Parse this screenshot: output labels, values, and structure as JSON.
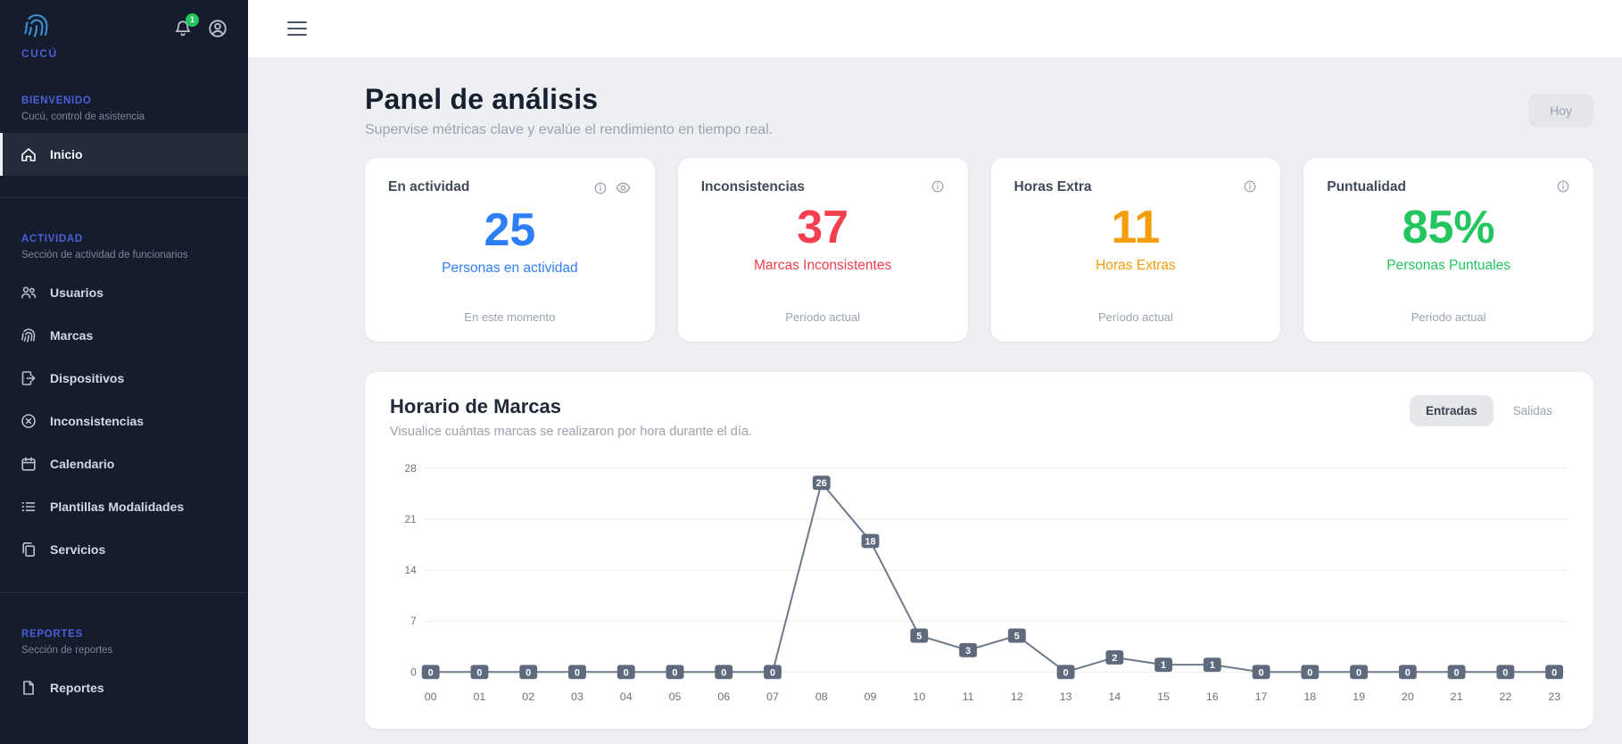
{
  "sidebar": {
    "logo_text": "CUCÚ",
    "logo_icon": "fingerprint-logo-icon",
    "notifications": {
      "badge": "1",
      "icon": "bell-icon"
    },
    "profile_icon": "user-circle-icon",
    "sections": [
      {
        "label": "BIENVENIDO",
        "subtitle": "Cucú, control de asistencia",
        "items": [
          {
            "label": "Inicio",
            "icon": "home-icon",
            "active": true
          }
        ]
      },
      {
        "label": "ACTIVIDAD",
        "subtitle": "Sección de actividad de funcionarios",
        "items": [
          {
            "label": "Usuarios",
            "icon": "users-icon"
          },
          {
            "label": "Marcas",
            "icon": "fingerprint-icon"
          },
          {
            "label": "Dispositivos",
            "icon": "device-icon"
          },
          {
            "label": "Inconsistencias",
            "icon": "x-circle-icon"
          },
          {
            "label": "Calendario",
            "icon": "calendar-icon"
          },
          {
            "label": "Plantillas Modalidades",
            "icon": "list-icon"
          },
          {
            "label": "Servicios",
            "icon": "clipboard-icon"
          }
        ]
      },
      {
        "label": "REPORTES",
        "subtitle": "Sección de reportes",
        "items": [
          {
            "label": "Reportes",
            "icon": "report-icon"
          }
        ]
      }
    ]
  },
  "topbar": {
    "menu_icon": "hamburger-icon"
  },
  "header": {
    "title": "Panel de análisis",
    "subtitle": "Supervise métricas clave y evalúe el rendimiento en tiempo real.",
    "date_filter_label": "Hoy"
  },
  "stats": [
    {
      "title": "En actividad",
      "value": "25",
      "label": "Personas en actividad",
      "footer": "En este momento",
      "color": "#2d7ff9",
      "icons": [
        "info-icon",
        "eye-icon"
      ]
    },
    {
      "title": "Inconsistencias",
      "value": "37",
      "label": "Marcas Inconsistentes",
      "footer": "Período actual",
      "color": "#f43f4e",
      "icons": [
        "info-icon"
      ]
    },
    {
      "title": "Horas Extra",
      "value": "11",
      "label": "Horas Extras",
      "footer": "Período actual",
      "color": "#f59e0b",
      "icons": [
        "info-icon"
      ]
    },
    {
      "title": "Puntualidad",
      "value": "85%",
      "label": "Personas Puntuales",
      "footer": "Período actual",
      "color": "#22c55e",
      "icons": [
        "info-icon"
      ]
    }
  ],
  "chart_card": {
    "title": "Horario de Marcas",
    "subtitle": "Visualice cuántas marcas se realizaron por hora durante el día.",
    "toggle": {
      "active": "Entradas",
      "inactive": "Salidas"
    }
  },
  "chart_data": {
    "type": "line",
    "title": "Horario de Marcas",
    "x": [
      "00",
      "01",
      "02",
      "03",
      "04",
      "05",
      "06",
      "07",
      "08",
      "09",
      "10",
      "11",
      "12",
      "13",
      "14",
      "15",
      "16",
      "17",
      "18",
      "19",
      "20",
      "21",
      "22",
      "23"
    ],
    "series": [
      {
        "name": "Entradas",
        "values": [
          0,
          0,
          0,
          0,
          0,
          0,
          0,
          0,
          26,
          18,
          5,
          3,
          5,
          0,
          2,
          1,
          1,
          0,
          0,
          0,
          0,
          0,
          0,
          0
        ]
      }
    ],
    "y_ticks": [
      0,
      7,
      14,
      21,
      28
    ],
    "ylim": [
      0,
      28
    ],
    "grid": true,
    "legend": "none",
    "line_color": "#6e7a8a",
    "point_label_bg": "#5f6b7d",
    "point_label_color": "#ffffff"
  }
}
